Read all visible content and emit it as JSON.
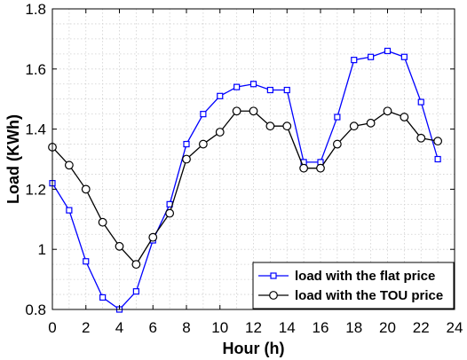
{
  "chart_data": {
    "type": "line",
    "title": "",
    "xlabel": "Hour (h)",
    "ylabel": "Load (KWh)",
    "xlim": [
      0,
      24
    ],
    "ylim": [
      0.8,
      1.8
    ],
    "xticks": [
      0,
      2,
      4,
      6,
      8,
      10,
      12,
      14,
      16,
      18,
      20,
      22,
      24
    ],
    "yticks": [
      0.8,
      1,
      1.2,
      1.4,
      1.6,
      1.8
    ],
    "ytick_labels": [
      "0.8",
      "1",
      "1.2",
      "1.4",
      "1.6",
      "1.8"
    ],
    "grid": "dotted",
    "legend_position": "bottom-right",
    "x": [
      0,
      1,
      2,
      3,
      4,
      5,
      6,
      7,
      8,
      9,
      10,
      11,
      12,
      13,
      14,
      15,
      16,
      17,
      18,
      19,
      20,
      21,
      22,
      23
    ],
    "series": [
      {
        "name": "load with the flat price",
        "color": "#0000ff",
        "marker": "square",
        "values": [
          1.22,
          1.13,
          0.96,
          0.84,
          0.8,
          0.86,
          1.03,
          1.15,
          1.35,
          1.45,
          1.51,
          1.54,
          1.55,
          1.53,
          1.53,
          1.29,
          1.29,
          1.44,
          1.63,
          1.64,
          1.66,
          1.64,
          1.49,
          1.3
        ]
      },
      {
        "name": "load with the TOU price",
        "color": "#000000",
        "marker": "circle",
        "values": [
          1.34,
          1.28,
          1.2,
          1.09,
          1.01,
          0.95,
          1.04,
          1.12,
          1.3,
          1.35,
          1.39,
          1.46,
          1.46,
          1.41,
          1.41,
          1.27,
          1.27,
          1.35,
          1.41,
          1.42,
          1.46,
          1.44,
          1.37,
          1.36
        ]
      }
    ]
  }
}
